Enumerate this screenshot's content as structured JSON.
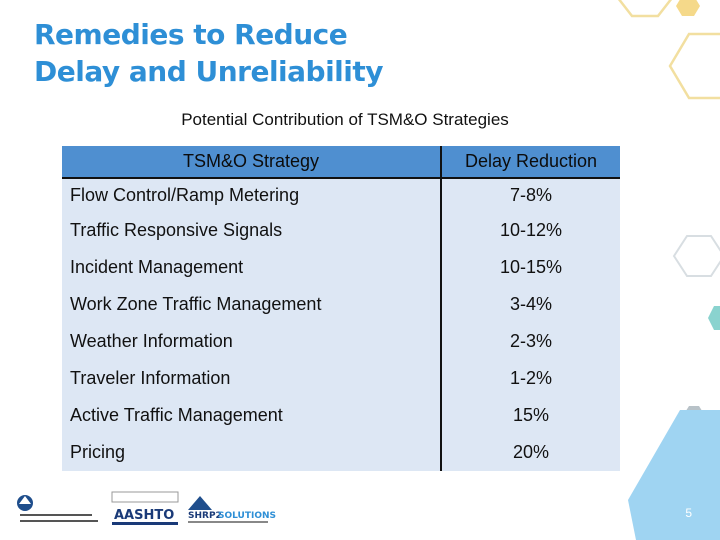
{
  "title_lines": [
    "Remedies to Reduce",
    "Delay and Unreliability"
  ],
  "table": {
    "caption": "Potential Contribution of TSM&O Strategies",
    "headers": [
      "TSM&O Strategy",
      "Delay Reduction"
    ],
    "rows": [
      {
        "strategy": "Flow Control/Ramp Metering",
        "reduction": "7-8%"
      },
      {
        "strategy": "Traffic Responsive Signals",
        "reduction": "10-12%"
      },
      {
        "strategy": "Incident Management",
        "reduction": "10-15%"
      },
      {
        "strategy": "Work Zone Traffic Management",
        "reduction": "3-4%"
      },
      {
        "strategy": "Weather Information",
        "reduction": "2-3%"
      },
      {
        "strategy": "Traveler Information",
        "reduction": "1-2%"
      },
      {
        "strategy": "Active Traffic Management",
        "reduction": "15%"
      },
      {
        "strategy": "Pricing",
        "reduction": "20%"
      }
    ]
  },
  "footer": {
    "logos": {
      "usdot": "US Department of Transportation Federal Highway Administration",
      "aashto": "AASHTO",
      "shrp2": "SHRP2 SOLUTIONS"
    },
    "page_number": "5"
  },
  "colors": {
    "title": "#2e8fd6",
    "table_header": "#4f8fd0",
    "table_row": "#dde7f4",
    "hex_outline": "#f2dfa0",
    "hex_teal": "#8ad3cf",
    "hex_blue": "#9fd4f2",
    "hex_gray": "#b8c2c8"
  },
  "icons": [
    "usdot-logo-icon",
    "aashto-logo-icon",
    "shrp2-logo-icon"
  ]
}
